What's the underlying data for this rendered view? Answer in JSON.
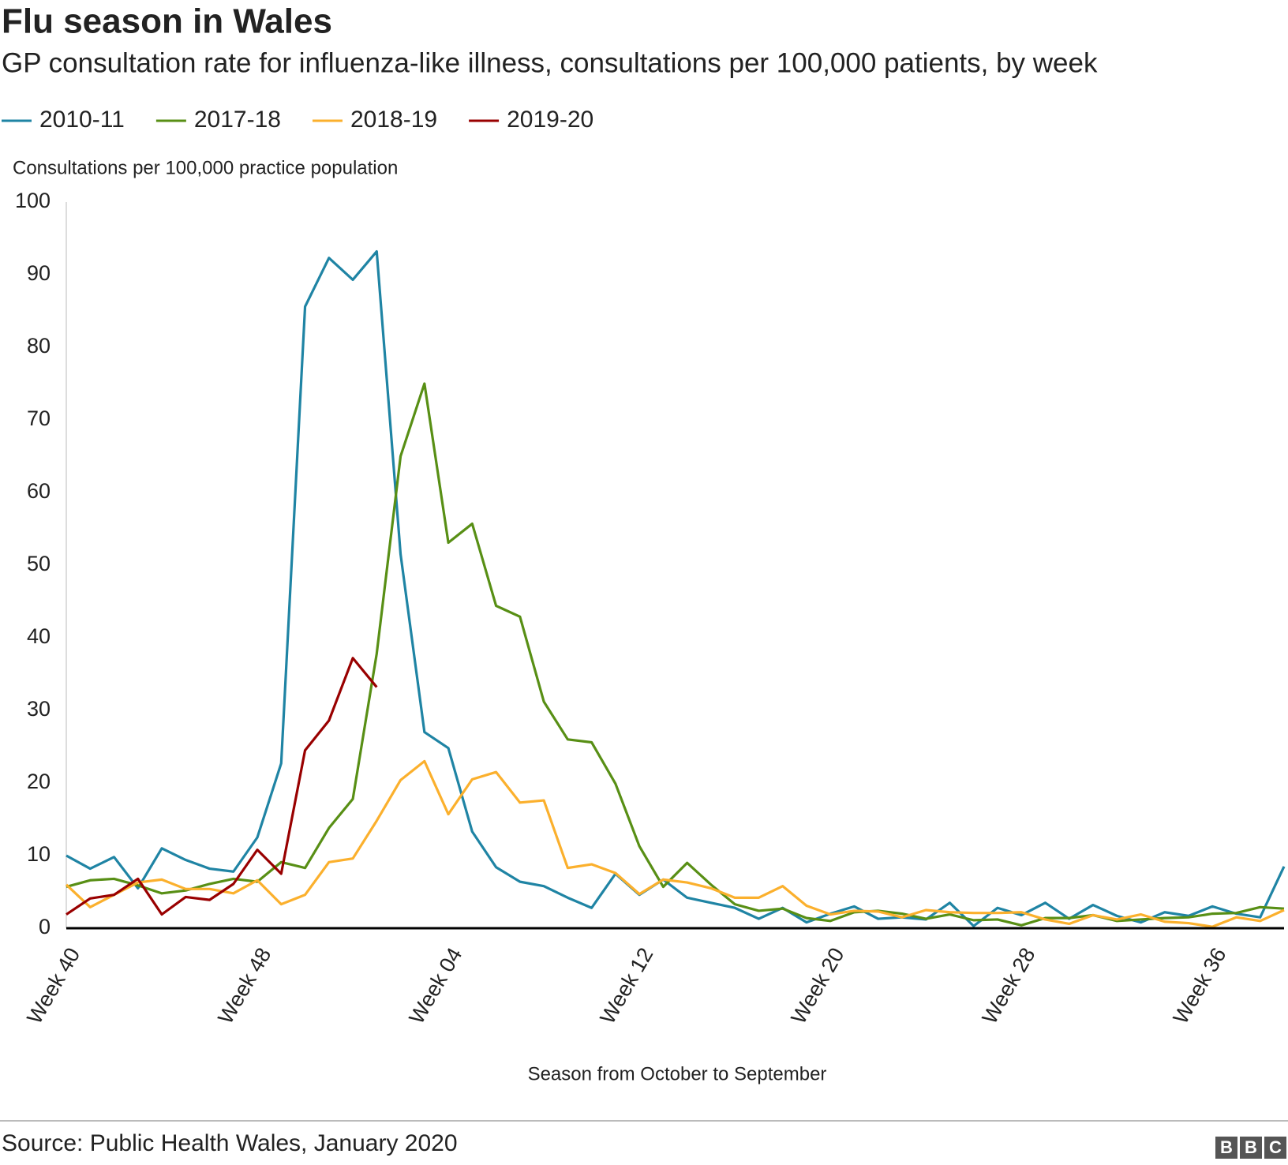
{
  "chart_data": {
    "type": "line",
    "title": "Flu season in Wales",
    "subtitle": "GP consultation rate for influenza-like illness, consultations per 100,000 patients, by week",
    "y_axis_label": "Consultations per 100,000 practice population",
    "x_axis_label": "Season from October to September",
    "source": "Source: Public Health Wales, January 2020",
    "logo": [
      "B",
      "B",
      "C"
    ],
    "categories": [
      "Week 40",
      null,
      null,
      null,
      null,
      null,
      null,
      null,
      "Week 48",
      null,
      null,
      null,
      null,
      null,
      null,
      null,
      "Week 04",
      null,
      null,
      null,
      null,
      null,
      null,
      null,
      "Week 12",
      null,
      null,
      null,
      null,
      null,
      null,
      null,
      "Week 20",
      null,
      null,
      null,
      null,
      null,
      null,
      null,
      "Week 28",
      null,
      null,
      null,
      null,
      null,
      null,
      null,
      "Week 36",
      null,
      null,
      null
    ],
    "ylim": [
      0,
      100
    ],
    "yticks": [
      0,
      10,
      20,
      30,
      40,
      50,
      60,
      70,
      80,
      90,
      100
    ],
    "grid": false,
    "legend": "top-left",
    "series": [
      {
        "name": "2010-11",
        "color": "#1f84a4",
        "values": [
          10,
          8.2,
          9.8,
          5.5,
          11,
          9.4,
          8.2,
          7.8,
          12.5,
          22.7,
          85.6,
          92.3,
          89.3,
          93.2,
          51.5,
          27,
          24.8,
          13.3,
          8.4,
          6.4,
          5.8,
          4.2,
          2.8,
          7.5,
          4.6,
          6.7,
          4.2,
          3.5,
          2.8,
          1.3,
          2.8,
          0.8,
          2,
          3,
          1.3,
          1.5,
          1.2,
          3.5,
          0.3,
          2.8,
          1.8,
          3.5,
          1.3,
          3.2,
          1.7,
          0.8,
          2.2,
          1.7,
          3,
          2,
          1.5,
          8.5
        ]
      },
      {
        "name": "2017-18",
        "color": "#588f15",
        "values": [
          5.7,
          6.6,
          6.8,
          5.9,
          4.8,
          5.2,
          6.1,
          6.8,
          6.4,
          9.1,
          8.3,
          13.8,
          17.8,
          37.8,
          65,
          75,
          53.1,
          55.7,
          44.4,
          42.9,
          31.2,
          26,
          25.6,
          19.9,
          11.3,
          5.7,
          9,
          6,
          3.3,
          2.4,
          2.7,
          1.4,
          1,
          2.2,
          2.4,
          2,
          1.3,
          1.9,
          1.1,
          1.2,
          0.4,
          1.4,
          1.4,
          1.8,
          1,
          1.2,
          1.4,
          1.5,
          2,
          2.1,
          2.9,
          2.7
        ]
      },
      {
        "name": "2018-19",
        "color": "#fbb02d",
        "values": [
          6,
          2.9,
          4.6,
          6.3,
          6.7,
          5.4,
          5.4,
          4.8,
          6.6,
          3.3,
          4.6,
          9.1,
          9.6,
          14.8,
          20.4,
          23,
          15.7,
          20.5,
          21.5,
          17.3,
          17.6,
          8.3,
          8.8,
          7.6,
          4.7,
          6.7,
          6.3,
          5.5,
          4.2,
          4.2,
          5.8,
          3.1,
          1.9,
          2.4,
          2.3,
          1.5,
          2.5,
          2.2,
          2.1,
          2.1,
          2.2,
          1.2,
          0.6,
          1.8,
          1.2,
          1.9,
          0.9,
          0.7,
          0.2,
          1.5,
          1,
          2.5
        ]
      },
      {
        "name": "2019-20",
        "color": "#990000",
        "values": [
          1.9,
          4.1,
          4.6,
          6.8,
          1.9,
          4.3,
          3.9,
          6.1,
          10.8,
          7.5,
          24.5,
          28.6,
          37.2,
          33.2,
          null,
          null,
          null,
          null,
          null,
          null,
          null,
          null,
          null,
          null,
          null,
          null,
          null,
          null,
          null,
          null,
          null,
          null,
          null,
          null,
          null,
          null,
          null,
          null,
          null,
          null,
          null,
          null,
          null,
          null,
          null,
          null,
          null,
          null,
          null,
          null,
          null,
          null
        ]
      }
    ]
  }
}
